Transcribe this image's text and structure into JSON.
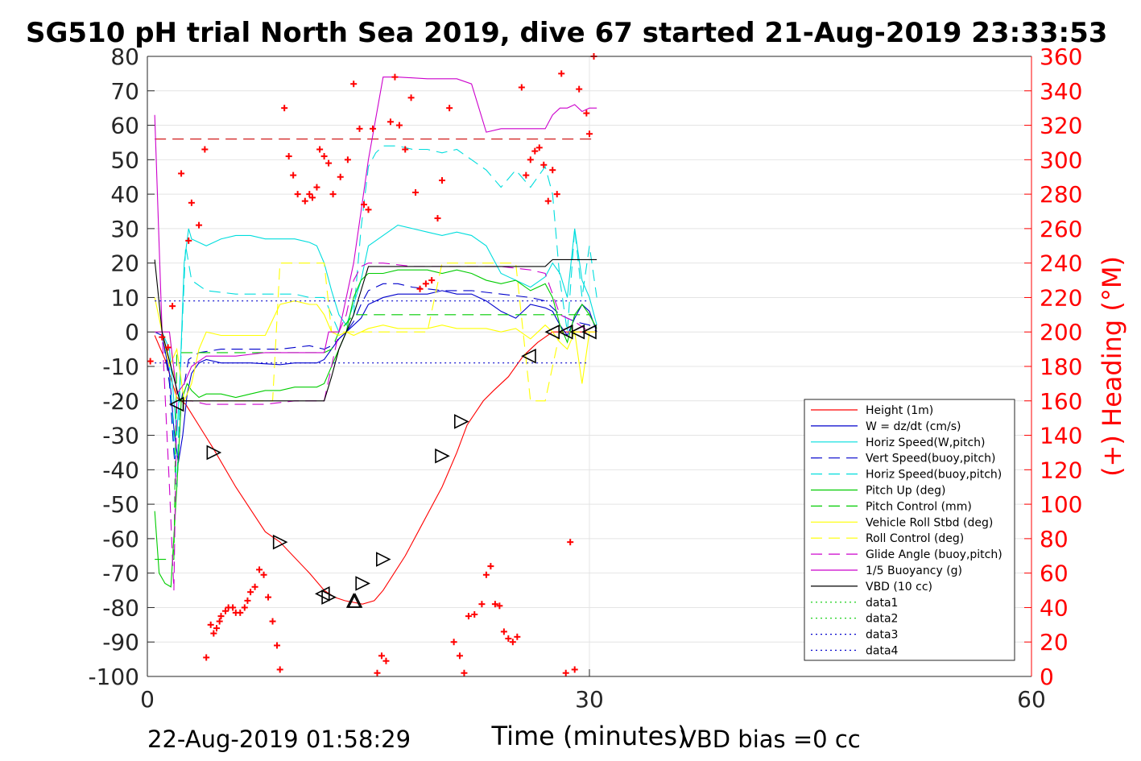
{
  "chart_data": {
    "type": "line",
    "title": "SG510 pH trial North Sea 2019, dive 67 started 21-Aug-2019 23:33:53",
    "xlabel": "Time (minutes)",
    "ylabel_right": "(+) Heading (°M)",
    "xlim": [
      0,
      60
    ],
    "ylim_left": [
      -100,
      80
    ],
    "ylim_right": [
      0,
      360
    ],
    "xticks": [
      "0",
      "30",
      "60"
    ],
    "yticks_left": [
      "80",
      "70",
      "60",
      "50",
      "40",
      "30",
      "20",
      "10",
      "0",
      "-10",
      "-20",
      "-30",
      "-40",
      "-50",
      "-60",
      "-70",
      "-80",
      "-90",
      "-100"
    ],
    "yticks_right": [
      "360",
      "340",
      "320",
      "300",
      "280",
      "260",
      "240",
      "220",
      "200",
      "180",
      "160",
      "140",
      "120",
      "100",
      "80",
      "60",
      "40",
      "20",
      "0"
    ],
    "grid": true,
    "legend_position": "bottom-right",
    "footer_left": "22-Aug-2019 01:58:29",
    "footer_right": "VBD bias =0 cc",
    "right_axis_color": "#ff0000",
    "series": [
      {
        "name": "Height (1m)",
        "color": "#ff0000",
        "dash": "solid",
        "x": [
          0.5,
          1.2,
          2.0,
          2.6,
          4.5,
          6,
          8,
          9,
          11,
          12,
          12.7,
          13.4,
          14.6,
          15.4,
          16.0,
          17.5,
          18.5,
          20,
          21,
          21.7,
          22.8,
          23.5,
          24.5,
          25.5,
          26.5,
          27.5,
          28.2,
          29,
          30,
          30.5
        ],
        "y": [
          -1,
          -8,
          -19,
          -21,
          -34,
          -45,
          -58,
          -61,
          -70,
          -75,
          -77,
          -78,
          -79,
          -78,
          -75,
          -65,
          -57,
          -45,
          -35,
          -27,
          -20,
          -17,
          -13,
          -7,
          -3,
          0,
          0,
          0,
          0,
          0
        ]
      },
      {
        "name": "W = dz/dt (cm/s)",
        "color": "#0000cc",
        "dash": "solid",
        "x": [
          0.5,
          1,
          1.5,
          1.8,
          2.1,
          2.4,
          2.7,
          3,
          3.5,
          4,
          5,
          7,
          9,
          10,
          11,
          11.5,
          12,
          12.5,
          13,
          13.5,
          14,
          14.5,
          15,
          16,
          17,
          18,
          19,
          20,
          21,
          22,
          23,
          24,
          25,
          26,
          27,
          27.5,
          28,
          28.5,
          29,
          29.5,
          30,
          30.5
        ],
        "y": [
          0,
          -1,
          -12,
          -28,
          -38,
          -30,
          -18,
          -12,
          -9,
          -8,
          -9,
          -9,
          -9.5,
          -9,
          -9,
          -9,
          -8,
          -5,
          -2,
          0,
          2,
          4,
          8,
          10,
          11,
          11,
          11,
          12,
          11,
          11,
          9,
          6,
          4,
          8,
          7,
          6,
          2,
          -1,
          4,
          8,
          6,
          0
        ]
      },
      {
        "name": "Horiz Speed(W,pitch)",
        "color": "#00dddd",
        "dash": "solid",
        "x": [
          0.5,
          1,
          1.5,
          2,
          2.2,
          2.5,
          2.8,
          3,
          3.5,
          4,
          5,
          6,
          7,
          8,
          9,
          10,
          11,
          11.5,
          12,
          12.5,
          13,
          13.5,
          14,
          14.5,
          15,
          16,
          17,
          18,
          19,
          20,
          21,
          22,
          23,
          24,
          25,
          26,
          27,
          27.5,
          28,
          28.5,
          29,
          29.5,
          30,
          30.5
        ],
        "y": [
          0,
          0,
          -5,
          -30,
          -15,
          20,
          30,
          27,
          26,
          25,
          27,
          28,
          28,
          27,
          27,
          27,
          26,
          25,
          20,
          12,
          5,
          2,
          8,
          15,
          25,
          28,
          31,
          30,
          29,
          28,
          29,
          28,
          25,
          17,
          15,
          13,
          16,
          20,
          17,
          10,
          30,
          15,
          10,
          2
        ]
      },
      {
        "name": "Vert Speed(buoy,pitch)",
        "color": "#0000cc",
        "dash": "dash",
        "x": [
          0.5,
          1,
          1.5,
          1.8,
          2,
          2.3,
          2.8,
          3.5,
          5,
          7,
          9,
          11,
          12,
          12.5,
          13,
          13.5,
          14,
          14.5,
          15,
          16,
          17,
          18,
          20,
          22,
          24,
          26,
          27,
          28,
          29,
          30,
          30.5
        ],
        "y": [
          0,
          0,
          -15,
          -35,
          -45,
          -20,
          -8,
          -6,
          -5,
          -5,
          -5,
          -4,
          -5,
          -4,
          -2,
          0,
          3,
          8,
          12,
          14,
          14,
          13,
          12,
          12,
          11,
          10,
          9,
          5,
          3,
          2,
          0
        ]
      },
      {
        "name": "Horiz Speed(buoy,pitch)",
        "color": "#00dddd",
        "dash": "dash",
        "x": [
          0.5,
          1,
          1.5,
          2,
          2.3,
          2.6,
          3,
          4,
          6,
          8,
          10,
          11,
          12,
          12.5,
          13,
          13.5,
          14,
          14.5,
          15,
          15.5,
          16,
          17,
          18,
          19,
          20,
          21,
          22,
          23,
          24,
          25,
          26,
          27,
          27.5,
          28,
          28.5,
          29,
          29.5,
          30,
          30.5
        ],
        "y": [
          0,
          0,
          -10,
          -45,
          -5,
          25,
          15,
          12,
          11,
          11,
          11,
          10,
          10,
          5,
          0,
          0,
          5,
          30,
          48,
          52,
          54,
          54,
          53,
          53,
          52,
          53,
          50,
          47,
          42,
          47,
          42,
          48,
          40,
          15,
          0,
          30,
          10,
          25,
          10
        ]
      },
      {
        "name": "Pitch Up (deg)",
        "color": "#00cc00",
        "dash": "solid",
        "x": [
          0.5,
          0.8,
          1.2,
          1.6,
          2,
          2.3,
          2.7,
          3,
          3.5,
          4,
          5,
          6,
          7,
          8,
          9,
          10,
          11,
          11.5,
          12,
          12.5,
          13,
          13.5,
          14,
          14.5,
          15,
          16,
          17,
          18,
          19,
          20,
          21,
          22,
          23,
          24,
          25,
          26,
          27,
          27.5,
          28,
          28.5,
          29,
          29.5,
          30,
          30.5
        ],
        "y": [
          -52,
          -70,
          -73,
          -74,
          -45,
          -20,
          -15,
          -17,
          -19,
          -18,
          -18,
          -19,
          -18,
          -17,
          -17,
          -16,
          -16,
          -16,
          -15,
          -10,
          -5,
          0,
          10,
          15,
          17,
          17,
          18,
          18,
          18,
          17,
          18,
          17,
          15,
          14,
          15,
          12,
          14,
          10,
          2,
          -3,
          5,
          8,
          5,
          1
        ]
      },
      {
        "name": "Pitch Control (mm)",
        "color": "#00cc00",
        "dash": "dash",
        "x": [
          0.5,
          1.5,
          1.8,
          2,
          3,
          5,
          7,
          9,
          11,
          12,
          12.5,
          13,
          14,
          15,
          16,
          18,
          20,
          22,
          24,
          26,
          27,
          28,
          29,
          30
        ],
        "y": [
          -66,
          -66,
          -66,
          -6,
          -6,
          -6,
          -6,
          -6,
          -6,
          -6,
          -5,
          0,
          5,
          5,
          5,
          5,
          5,
          5,
          5,
          5,
          5,
          5,
          5,
          5
        ]
      },
      {
        "name": "Vehicle Roll Stbd (deg)",
        "color": "#ffff00",
        "dash": "solid",
        "x": [
          0.5,
          1,
          1.5,
          2,
          2.5,
          3,
          3.5,
          4,
          5,
          6,
          7,
          8,
          9,
          10,
          11,
          11.5,
          12,
          12.5,
          13,
          13.5,
          14,
          14.5,
          15,
          16,
          17,
          18,
          19,
          20,
          21,
          22,
          23,
          24,
          25,
          26,
          27,
          27.5,
          28,
          28.5,
          29,
          29.5,
          30,
          30.5
        ],
        "y": [
          10,
          0,
          -10,
          -5,
          -20,
          -15,
          -5,
          0,
          -1,
          -1,
          -1,
          -1,
          8,
          9,
          8,
          8,
          5,
          0,
          -1,
          0,
          -1,
          0,
          1,
          2,
          1,
          1,
          1,
          2,
          1,
          1,
          1,
          0,
          1,
          -2,
          2,
          0,
          -3,
          -5,
          0,
          -15,
          0,
          0
        ]
      },
      {
        "name": "Roll Control (deg)",
        "color": "#ffff00",
        "dash": "dash",
        "x": [
          0.5,
          1.5,
          2,
          3,
          5,
          7,
          8.5,
          9,
          10,
          11,
          11.5,
          12,
          12.5,
          13,
          14,
          15,
          17,
          19,
          20,
          21,
          22,
          23,
          24,
          25,
          26,
          27,
          28,
          29,
          30
        ],
        "y": [
          0,
          0,
          -20,
          -20,
          -20,
          -20,
          -20,
          20,
          20,
          20,
          20,
          20,
          0,
          0,
          0,
          0,
          0,
          0,
          20,
          20,
          20,
          20,
          20,
          20,
          -20,
          -20,
          0,
          0,
          0
        ]
      },
      {
        "name": "Glide Angle (buoy,pitch)",
        "color": "#cc00cc",
        "dash": "dash",
        "x": [
          0.5,
          1,
          1.5,
          1.8,
          2,
          2.3,
          2.7,
          3,
          4,
          6,
          8,
          10,
          11,
          12,
          12.5,
          13,
          13.5,
          14,
          14.5,
          15,
          16,
          18,
          20,
          22,
          24,
          26,
          27,
          28,
          29,
          30
        ],
        "y": [
          0,
          0,
          -45,
          -75,
          -20,
          -20,
          -20,
          -20,
          -21,
          -21,
          -21,
          -20,
          -20,
          -20,
          -10,
          0,
          5,
          15,
          19,
          20,
          20,
          19,
          19,
          19,
          19,
          18,
          17,
          5,
          3,
          0
        ]
      },
      {
        "name": "1/5 Buoyancy (g)",
        "color": "#cc00cc",
        "dash": "solid",
        "x": [
          0.5,
          1,
          1.5,
          2,
          2.5,
          3,
          4,
          6,
          8,
          10,
          11,
          12,
          12.3,
          13,
          14,
          15,
          16,
          17,
          19,
          21,
          22,
          23,
          24,
          25,
          26,
          27,
          27.5,
          28,
          28.5,
          29,
          29.5,
          30,
          30.5
        ],
        "y": [
          63,
          0,
          0,
          -18,
          -15,
          -10,
          -7,
          -7,
          -6,
          -6,
          -6,
          -6,
          0,
          0,
          20,
          50,
          74,
          74,
          73.5,
          73.5,
          72,
          58,
          59,
          59,
          59,
          59,
          63,
          65,
          65,
          66,
          64,
          65,
          65
        ]
      },
      {
        "name": "VBD (10 cc)",
        "color": "#000000",
        "dash": "solid",
        "x": [
          0.5,
          1,
          2.2,
          2.8,
          3,
          5,
          7,
          9,
          11,
          12,
          12.5,
          13,
          13.5,
          14,
          14.5,
          15,
          16,
          18,
          20,
          22,
          24,
          26,
          27,
          27.5,
          28,
          29,
          30,
          30.5
        ],
        "y": [
          21,
          0,
          -20,
          -20,
          -20,
          -20,
          -20,
          -20,
          -20,
          -20,
          -13,
          -5,
          0,
          5,
          12,
          19,
          19,
          19,
          19,
          19,
          19,
          19,
          19,
          21,
          21,
          21,
          21,
          21
        ]
      },
      {
        "name": "data1",
        "color": "#00cc00",
        "dash": "dot",
        "x": [],
        "y": []
      },
      {
        "name": "data2",
        "color": "#00cc00",
        "dash": "dot",
        "x": [],
        "y": []
      },
      {
        "name": "data3",
        "color": "#0000cc",
        "dash": "dot",
        "x": [
          0.5,
          29.8
        ],
        "y": [
          9,
          9
        ]
      },
      {
        "name": "data4",
        "color": "#0000cc",
        "dash": "dot",
        "x": [
          0.5,
          29.8
        ],
        "y": [
          -9,
          -9
        ]
      }
    ],
    "reference_line": {
      "color": "#cc0000",
      "dash": "dash",
      "x": [
        0.5,
        30.5
      ],
      "y": [
        56,
        56
      ]
    },
    "heading_points": {
      "color": "#ff0000",
      "x": [
        0.2,
        1.0,
        1.4,
        1.7,
        2.3,
        2.8,
        3.0,
        3.5,
        3.9,
        4.0,
        4.3,
        4.5,
        4.7,
        4.9,
        5.0,
        5.3,
        5.5,
        5.8,
        6.0,
        6.3,
        6.6,
        6.8,
        7.0,
        7.3,
        7.6,
        7.9,
        8.2,
        8.5,
        8.8,
        9.0,
        9.3,
        9.6,
        9.9,
        10.2,
        10.7,
        11.0,
        11.2,
        11.5,
        11.7,
        12.0,
        12.3,
        12.6,
        13.1,
        13.6,
        14.0,
        14.4,
        14.7,
        15.0,
        15.3,
        15.6,
        15.9,
        16.2,
        16.5,
        16.8,
        17.1,
        17.5,
        17.9,
        18.2,
        18.5,
        18.9,
        19.3,
        19.7,
        20.0,
        20.5,
        20.8,
        21.2,
        21.5,
        21.8,
        22.2,
        22.7,
        23.0,
        23.3,
        23.6,
        23.9,
        24.2,
        24.5,
        24.8,
        25.1,
        25.4,
        25.7,
        26.0,
        26.3,
        26.6,
        26.9,
        27.2,
        27.5,
        27.8,
        28.1,
        28.4,
        28.7,
        29.0,
        29.3,
        29.8,
        30.0,
        30.3
      ],
      "y": [
        183,
        197,
        191,
        215,
        292,
        253,
        275,
        262,
        306,
        11,
        30,
        25,
        28,
        32,
        35,
        38,
        40,
        40,
        37,
        37,
        40,
        44,
        49,
        52,
        62,
        59,
        46,
        32,
        18,
        4,
        330,
        302,
        291,
        280,
        276,
        280,
        278,
        284,
        306,
        302,
        298,
        280,
        290,
        300,
        344,
        318,
        274,
        271,
        318,
        2,
        12,
        9,
        322,
        348,
        320,
        306,
        336,
        281,
        225,
        228,
        230,
        266,
        288,
        330,
        20,
        12,
        2,
        35,
        36,
        42,
        59,
        64,
        42,
        41,
        26,
        22,
        20,
        23,
        342,
        291,
        300,
        305,
        307,
        297,
        276,
        294,
        280,
        350,
        2,
        78,
        4,
        341,
        327,
        315,
        360
      ]
    },
    "markers": {
      "x": [
        2.0,
        4.5,
        9,
        11.9,
        12.3,
        14.0,
        14.1,
        14.6,
        16.0,
        20.0,
        21.3,
        25.9,
        27.5,
        28.4,
        29.2,
        30.0
      ],
      "y": [
        -21,
        -35,
        -61,
        -76,
        -77,
        -78,
        -78,
        -73,
        -66,
        -36,
        -26,
        -7,
        0,
        0,
        0,
        0
      ],
      "dir": [
        "left",
        "right",
        "right",
        "left",
        "right",
        "up",
        "up",
        "right",
        "right",
        "right",
        "right",
        "left",
        "left",
        "left",
        "left",
        "left"
      ]
    }
  }
}
